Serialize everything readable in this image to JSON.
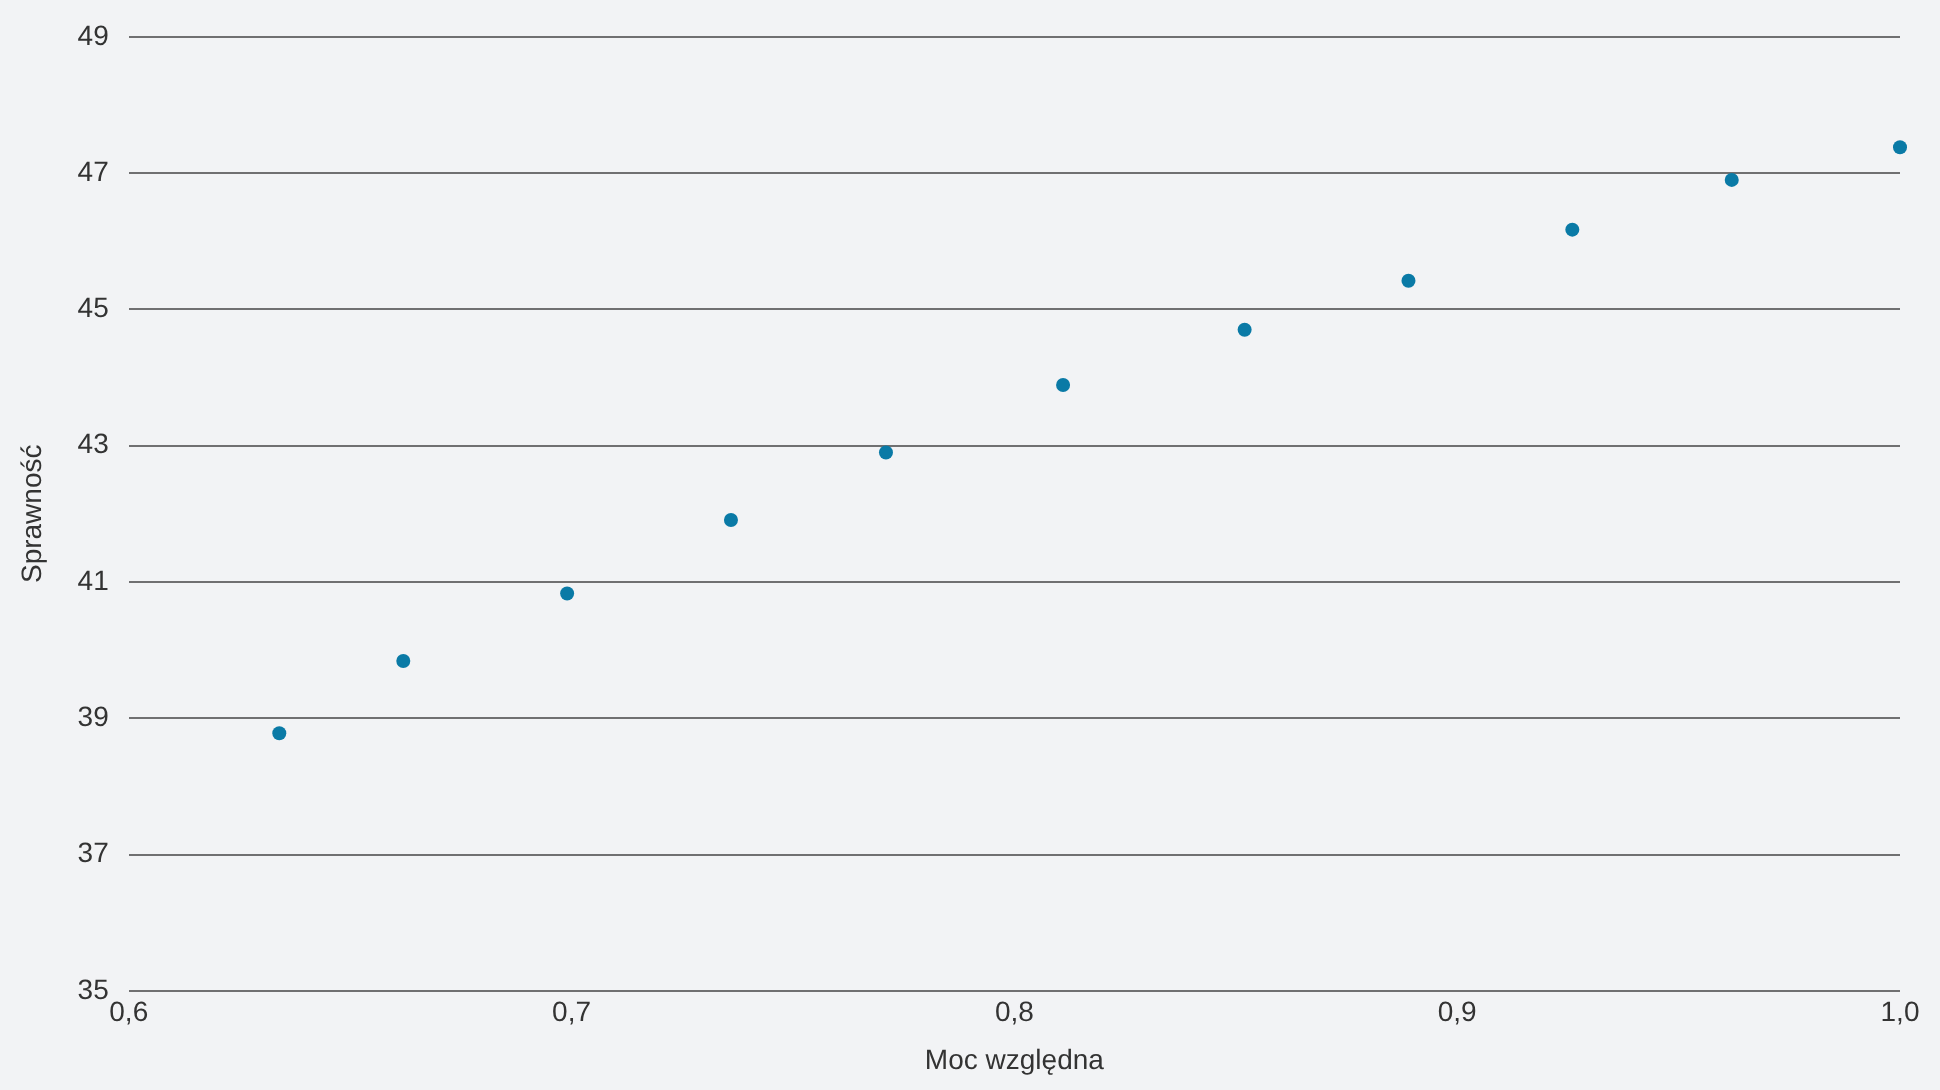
{
  "chart_data": {
    "type": "scatter",
    "xlabel": "Moc względna",
    "ylabel": "Sprawność",
    "x": [
      0.634,
      0.662,
      0.699,
      0.736,
      0.771,
      0.811,
      0.852,
      0.889,
      0.926,
      0.962,
      1.0
    ],
    "series": [
      {
        "color": "#0a7aa6",
        "values": [
          38.78,
          39.84,
          40.83,
          41.91,
          42.9,
          43.89,
          44.7,
          45.42,
          46.17,
          46.9,
          47.38
        ]
      }
    ],
    "xlim": [
      0.6,
      1.0
    ],
    "ylim": [
      35,
      49
    ],
    "xticks": [
      {
        "value": 0.6,
        "label": "0,6"
      },
      {
        "value": 0.7,
        "label": "0,7"
      },
      {
        "value": 0.8,
        "label": "0,8"
      },
      {
        "value": 0.9,
        "label": "0,9"
      },
      {
        "value": 1.0,
        "label": "1,0"
      }
    ],
    "yticks": [
      35,
      37,
      39,
      41,
      43,
      45,
      47,
      49
    ],
    "grid": "y",
    "legend": false,
    "marker": "circle"
  }
}
